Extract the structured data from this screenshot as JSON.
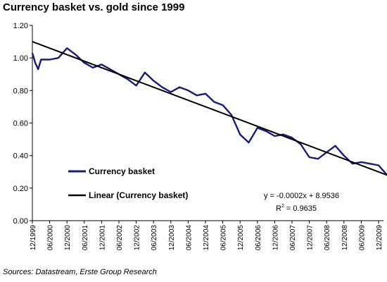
{
  "chart_data": {
    "type": "line",
    "title": "Currency basket vs. gold since 1999",
    "source": "Sources: Datastream, Erste Group Research",
    "xlabel": "",
    "ylabel": "",
    "ylim": [
      0,
      1.2
    ],
    "yticks": [
      "0.00",
      "0.20",
      "0.40",
      "0.60",
      "0.80",
      "1.00",
      "1.20"
    ],
    "x_tick_labels": [
      "12/1999",
      "06/2000",
      "12/2000",
      "06/2001",
      "12/2001",
      "06/2002",
      "12/2002",
      "06/2003",
      "12/2003",
      "06/2004",
      "12/2004",
      "06/2005",
      "12/2005",
      "06/2006",
      "12/2006",
      "06/2007",
      "12/2007",
      "06/2008",
      "12/2008",
      "06/2009",
      "12/2009"
    ],
    "grid": false,
    "legend_position": "bottom-left",
    "series": [
      {
        "name": "Currency basket",
        "color": "#1a1a7a",
        "x": [
          "12/1999",
          "01/2000",
          "02/2000",
          "03/2000",
          "06/2000",
          "09/2000",
          "12/2000",
          "03/2001",
          "06/2001",
          "09/2001",
          "12/2001",
          "03/2002",
          "06/2002",
          "09/2002",
          "12/2002",
          "03/2003",
          "06/2003",
          "09/2003",
          "12/2003",
          "03/2004",
          "06/2004",
          "09/2004",
          "12/2004",
          "03/2005",
          "06/2005",
          "09/2005",
          "12/2005",
          "03/2006",
          "06/2006",
          "09/2006",
          "12/2006",
          "03/2007",
          "06/2007",
          "09/2007",
          "12/2007",
          "03/2008",
          "06/2008",
          "09/2008",
          "12/2008",
          "03/2009",
          "06/2009",
          "09/2009",
          "12/2009",
          "03/2010"
        ],
        "values": [
          1.03,
          0.97,
          0.93,
          0.99,
          0.99,
          1.0,
          1.06,
          1.02,
          0.97,
          0.94,
          0.96,
          0.93,
          0.9,
          0.87,
          0.83,
          0.91,
          0.86,
          0.82,
          0.79,
          0.82,
          0.8,
          0.77,
          0.78,
          0.73,
          0.71,
          0.65,
          0.53,
          0.48,
          0.57,
          0.55,
          0.52,
          0.53,
          0.51,
          0.47,
          0.39,
          0.38,
          0.42,
          0.46,
          0.4,
          0.35,
          0.36,
          0.35,
          0.34,
          0.28
        ]
      },
      {
        "name": "Linear (Currency basket)",
        "color": "#000000",
        "x": [
          "12/1999",
          "03/2010"
        ],
        "values": [
          1.1,
          0.28
        ]
      }
    ],
    "annotation": {
      "equation": "y = -0.0002x + 8.9536",
      "r2_prefix": "R",
      "r2_exponent": "2",
      "r2_value": " = 0.9635"
    }
  }
}
